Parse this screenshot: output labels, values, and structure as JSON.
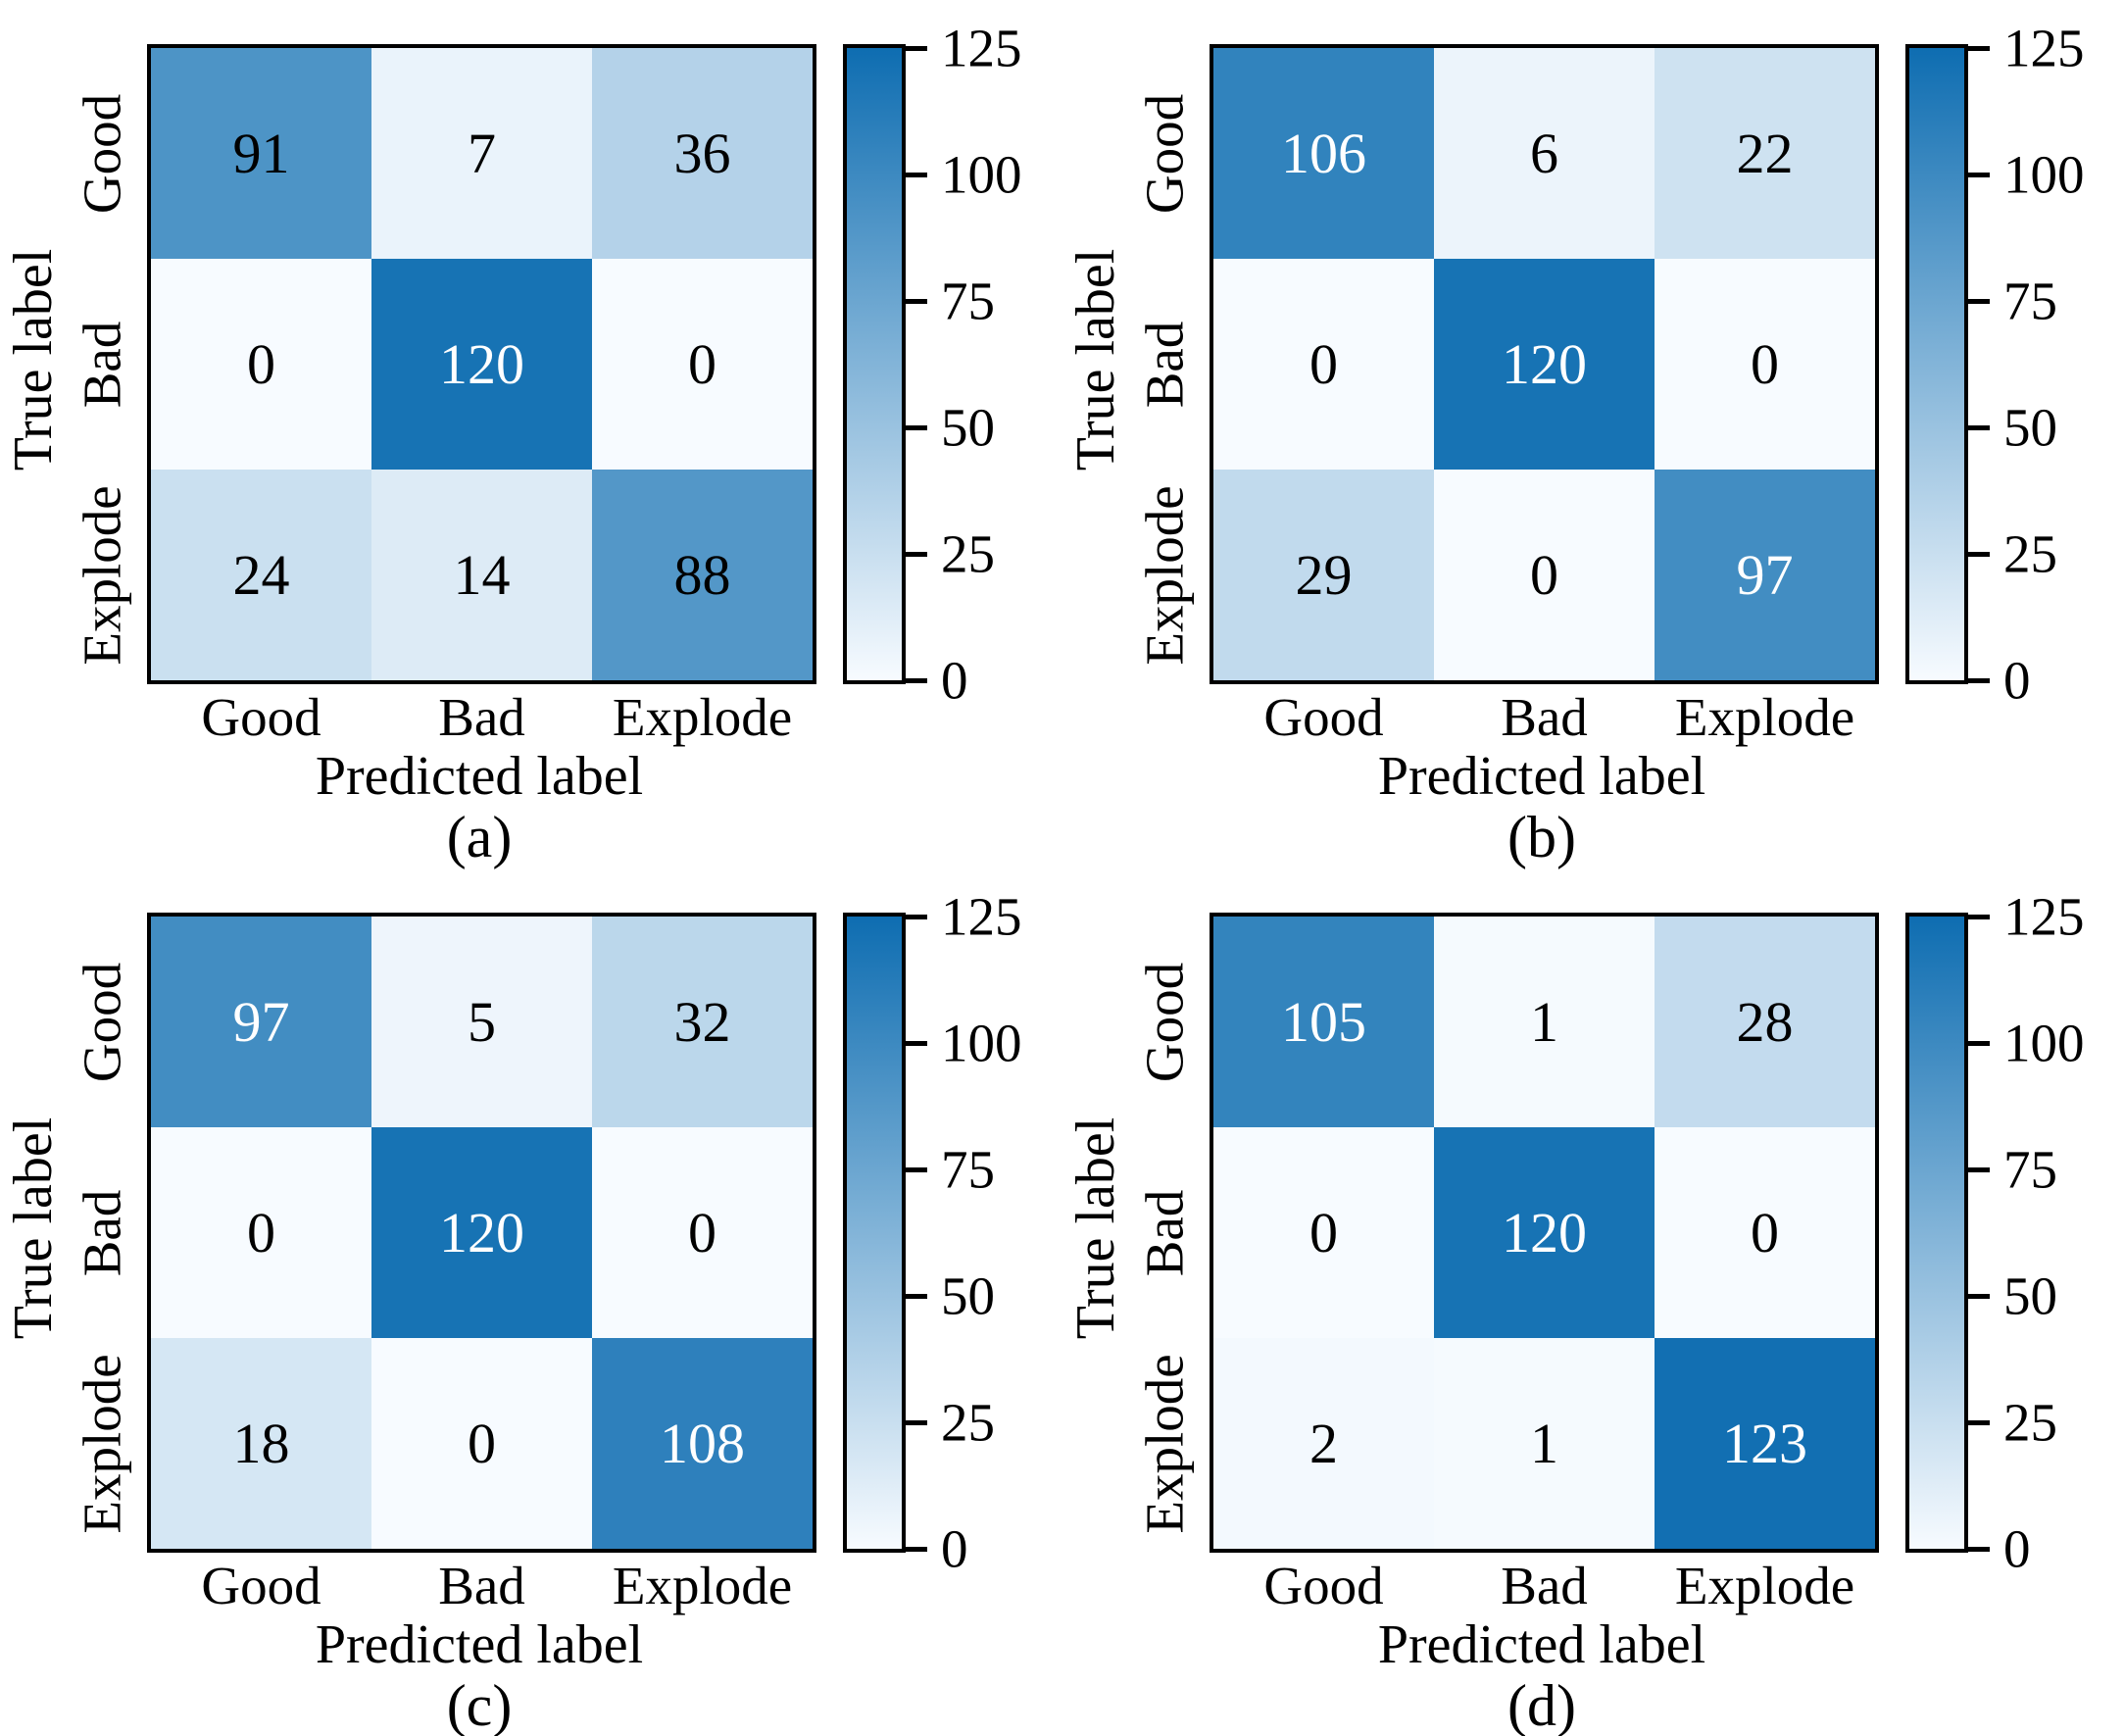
{
  "figure": {
    "background": "#ffffff",
    "kind": "confusion-matrix-grid",
    "rows": 2,
    "cols": 2
  },
  "colors": {
    "cmap_min": "#f7fbff",
    "cmap_max": "#0e6db1",
    "axis_line": "#000000",
    "text_black": "#000000",
    "text_white": "#ffffff",
    "text_white_threshold": 95
  },
  "chart_data": [
    {
      "type": "heatmap",
      "caption": "(a)",
      "xlabel": "Predicted label",
      "ylabel": "True label",
      "x_categories": [
        "Good",
        "Bad",
        "Explode"
      ],
      "y_categories": [
        "Good",
        "Bad",
        "Explode"
      ],
      "values": [
        [
          91,
          7,
          36
        ],
        [
          0,
          120,
          0
        ],
        [
          24,
          14,
          88
        ]
      ],
      "colorbar": {
        "vmin": 0,
        "vmax": 125,
        "ticks": [
          0,
          25,
          50,
          75,
          100,
          125
        ],
        "position": "right"
      }
    },
    {
      "type": "heatmap",
      "caption": "(b)",
      "xlabel": "Predicted label",
      "ylabel": "True label",
      "x_categories": [
        "Good",
        "Bad",
        "Explode"
      ],
      "y_categories": [
        "Good",
        "Bad",
        "Explode"
      ],
      "values": [
        [
          106,
          6,
          22
        ],
        [
          0,
          120,
          0
        ],
        [
          29,
          0,
          97
        ]
      ],
      "colorbar": {
        "vmin": 0,
        "vmax": 125,
        "ticks": [
          0,
          25,
          50,
          75,
          100,
          125
        ],
        "position": "right"
      }
    },
    {
      "type": "heatmap",
      "caption": "(c)",
      "xlabel": "Predicted label",
      "ylabel": "True label",
      "x_categories": [
        "Good",
        "Bad",
        "Explode"
      ],
      "y_categories": [
        "Good",
        "Bad",
        "Explode"
      ],
      "values": [
        [
          97,
          5,
          32
        ],
        [
          0,
          120,
          0
        ],
        [
          18,
          0,
          108
        ]
      ],
      "colorbar": {
        "vmin": 0,
        "vmax": 125,
        "ticks": [
          0,
          25,
          50,
          75,
          100,
          125
        ],
        "position": "right"
      }
    },
    {
      "type": "heatmap",
      "caption": "(d)",
      "xlabel": "Predicted label",
      "ylabel": "True label",
      "x_categories": [
        "Good",
        "Bad",
        "Explode"
      ],
      "y_categories": [
        "Good",
        "Bad",
        "Explode"
      ],
      "values": [
        [
          105,
          1,
          28
        ],
        [
          0,
          120,
          0
        ],
        [
          2,
          1,
          123
        ]
      ],
      "colorbar": {
        "vmin": 0,
        "vmax": 125,
        "ticks": [
          0,
          25,
          50,
          75,
          100,
          125
        ],
        "position": "right"
      }
    }
  ]
}
